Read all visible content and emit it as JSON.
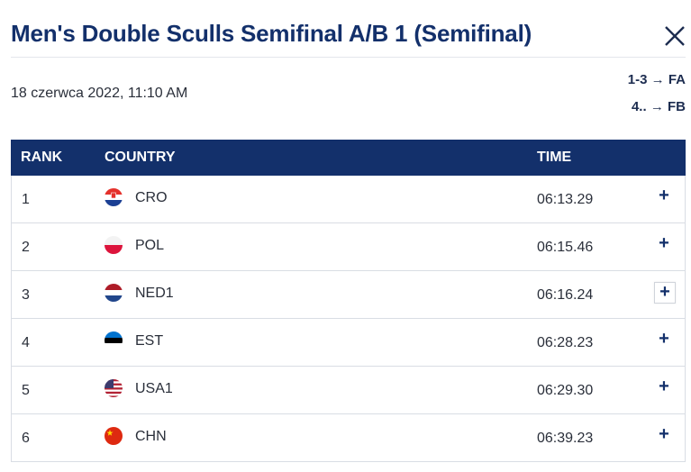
{
  "header": {
    "title": "Men's Double Sculls Semifinal A/B 1 (Semifinal)",
    "close_icon": "close-icon"
  },
  "race": {
    "datetime": "18 czerwca 2022, 11:10 AM",
    "progression": [
      {
        "ranks": "1-3",
        "arrow": "→",
        "target": "FA"
      },
      {
        "ranks": "4..",
        "arrow": "→",
        "target": "FB"
      }
    ]
  },
  "table": {
    "columns": {
      "rank": "RANK",
      "country": "COUNTRY",
      "time": "TIME"
    },
    "rows": [
      {
        "rank": "1",
        "country": "CRO",
        "time": "06:13.29",
        "flag": "croatia-flag-icon",
        "expand": "+"
      },
      {
        "rank": "2",
        "country": "POL",
        "time": "06:15.46",
        "flag": "poland-flag-icon",
        "expand": "+"
      },
      {
        "rank": "3",
        "country": "NED1",
        "time": "06:16.24",
        "flag": "netherlands-flag-icon",
        "expand": "+"
      },
      {
        "rank": "4",
        "country": "EST",
        "time": "06:28.23",
        "flag": "estonia-flag-icon",
        "expand": "+"
      },
      {
        "rank": "5",
        "country": "USA1",
        "time": "06:29.30",
        "flag": "usa-flag-icon",
        "expand": "+"
      },
      {
        "rank": "6",
        "country": "CHN",
        "time": "06:39.23",
        "flag": "china-flag-icon",
        "expand": "+"
      }
    ]
  },
  "colors": {
    "accent": "#13306b",
    "row_border": "#d9dde4"
  }
}
